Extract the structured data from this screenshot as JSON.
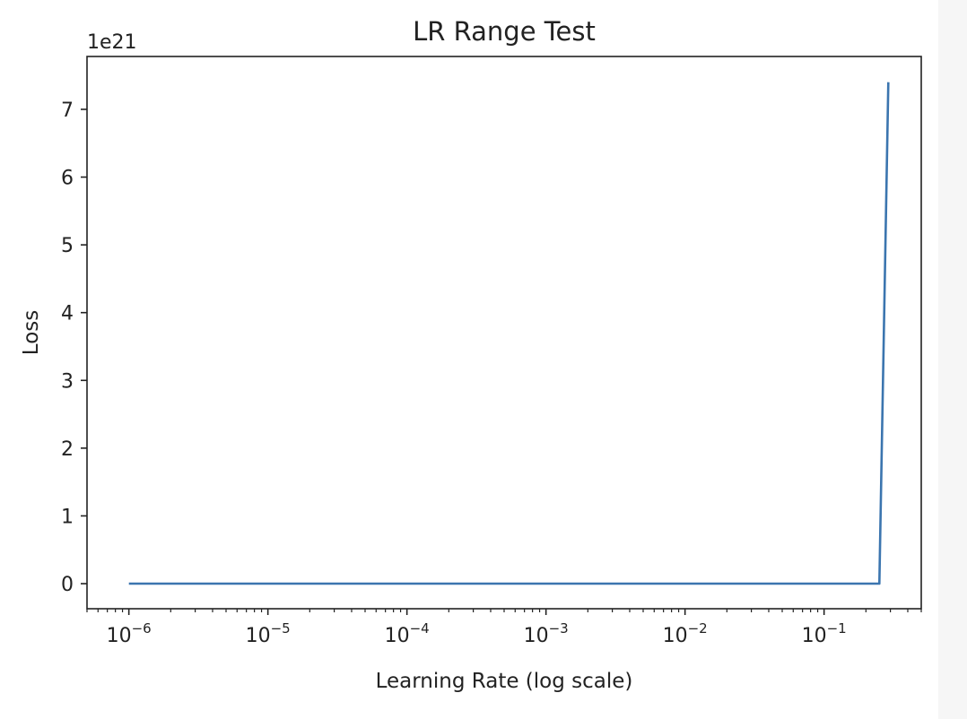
{
  "chart_data": {
    "type": "line",
    "title": "LR Range Test",
    "xlabel": "Learning Rate (log scale)",
    "ylabel": "Loss",
    "x_scale": "log",
    "xlim": [
      5e-07,
      0.5
    ],
    "ylim": [
      -0.37,
      7.78
    ],
    "y_offset_label": "1e21",
    "y_multiplier": 1e+21,
    "y_ticks": [
      0,
      1,
      2,
      3,
      4,
      5,
      6,
      7
    ],
    "x_ticks": [
      {
        "value": 1e-06,
        "base": "10",
        "exp": "−6"
      },
      {
        "value": 1e-05,
        "base": "10",
        "exp": "−5"
      },
      {
        "value": 0.0001,
        "base": "10",
        "exp": "−4"
      },
      {
        "value": 0.001,
        "base": "10",
        "exp": "−3"
      },
      {
        "value": 0.01,
        "base": "10",
        "exp": "−2"
      },
      {
        "value": 0.1,
        "base": "10",
        "exp": "−1"
      }
    ],
    "grid": false,
    "line_color": "#3b75af",
    "series": [
      {
        "x": [
          1e-06,
          1e-05,
          0.0001,
          0.001,
          0.01,
          0.1,
          0.25,
          0.29
        ],
        "y": [
          0,
          0,
          0,
          0,
          0,
          0,
          0,
          7.4
        ]
      }
    ]
  }
}
